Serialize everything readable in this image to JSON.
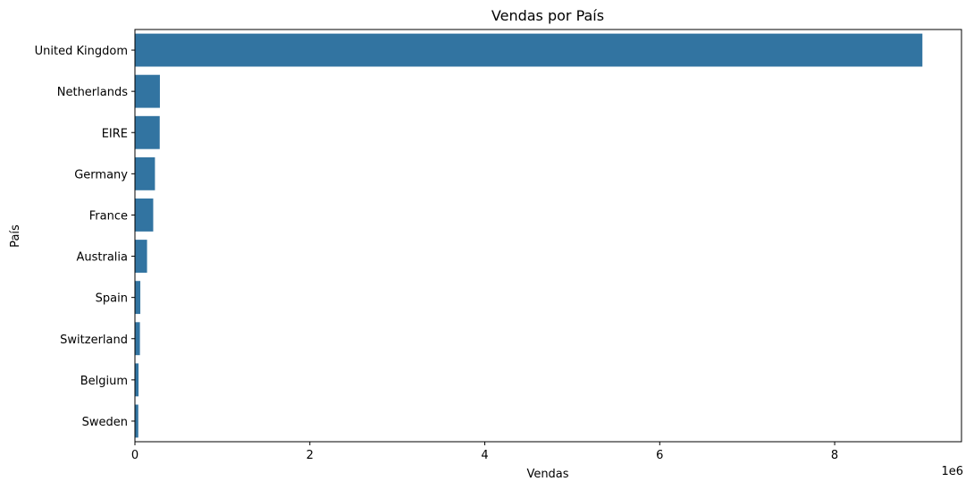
{
  "chart_data": {
    "type": "bar",
    "orientation": "horizontal",
    "title": "Vendas por País",
    "xlabel": "Vendas",
    "ylabel": "País",
    "x_scale_label": "1e6",
    "categories": [
      "United Kingdom",
      "Netherlands",
      "EIRE",
      "Germany",
      "France",
      "Australia",
      "Spain",
      "Switzerland",
      "Belgium",
      "Sweden"
    ],
    "values": [
      9003097.96,
      285446.34,
      283453.96,
      228867.14,
      209024.05,
      138521.31,
      61577.11,
      57089.9,
      41196.34,
      38378.33
    ],
    "x_ticks": [
      0,
      2,
      4,
      6,
      8
    ],
    "x_multiplier": 1000000,
    "xlim": [
      0,
      9450000
    ],
    "bar_color": "#3274a1",
    "grid": false,
    "legend": "none"
  }
}
